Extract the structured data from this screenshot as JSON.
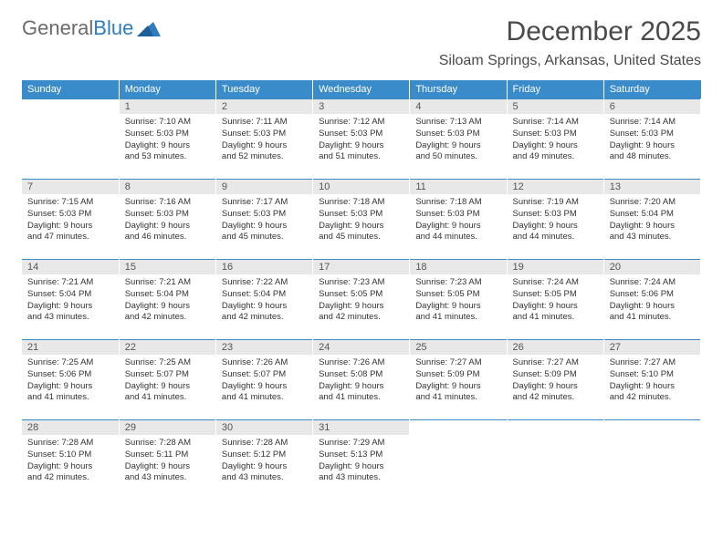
{
  "logo": {
    "text1": "General",
    "text2": "Blue"
  },
  "header": {
    "month_title": "December 2025",
    "location": "Siloam Springs, Arkansas, United States"
  },
  "colors": {
    "header_bg": "#3a8bc9",
    "header_text": "#ffffff",
    "daynum_bg": "#e8e8e8",
    "border": "#3a8bc9",
    "logo_gray": "#6b6b6b",
    "logo_blue": "#2f7bbf"
  },
  "typography": {
    "month_title_fontsize": 30,
    "location_fontsize": 16,
    "dayhead_fontsize": 11,
    "body_fontsize": 9.5
  },
  "day_headers": [
    "Sunday",
    "Monday",
    "Tuesday",
    "Wednesday",
    "Thursday",
    "Friday",
    "Saturday"
  ],
  "weeks": [
    [
      {
        "num": "",
        "lines": []
      },
      {
        "num": "1",
        "lines": [
          "Sunrise: 7:10 AM",
          "Sunset: 5:03 PM",
          "Daylight: 9 hours",
          "and 53 minutes."
        ]
      },
      {
        "num": "2",
        "lines": [
          "Sunrise: 7:11 AM",
          "Sunset: 5:03 PM",
          "Daylight: 9 hours",
          "and 52 minutes."
        ]
      },
      {
        "num": "3",
        "lines": [
          "Sunrise: 7:12 AM",
          "Sunset: 5:03 PM",
          "Daylight: 9 hours",
          "and 51 minutes."
        ]
      },
      {
        "num": "4",
        "lines": [
          "Sunrise: 7:13 AM",
          "Sunset: 5:03 PM",
          "Daylight: 9 hours",
          "and 50 minutes."
        ]
      },
      {
        "num": "5",
        "lines": [
          "Sunrise: 7:14 AM",
          "Sunset: 5:03 PM",
          "Daylight: 9 hours",
          "and 49 minutes."
        ]
      },
      {
        "num": "6",
        "lines": [
          "Sunrise: 7:14 AM",
          "Sunset: 5:03 PM",
          "Daylight: 9 hours",
          "and 48 minutes."
        ]
      }
    ],
    [
      {
        "num": "7",
        "lines": [
          "Sunrise: 7:15 AM",
          "Sunset: 5:03 PM",
          "Daylight: 9 hours",
          "and 47 minutes."
        ]
      },
      {
        "num": "8",
        "lines": [
          "Sunrise: 7:16 AM",
          "Sunset: 5:03 PM",
          "Daylight: 9 hours",
          "and 46 minutes."
        ]
      },
      {
        "num": "9",
        "lines": [
          "Sunrise: 7:17 AM",
          "Sunset: 5:03 PM",
          "Daylight: 9 hours",
          "and 45 minutes."
        ]
      },
      {
        "num": "10",
        "lines": [
          "Sunrise: 7:18 AM",
          "Sunset: 5:03 PM",
          "Daylight: 9 hours",
          "and 45 minutes."
        ]
      },
      {
        "num": "11",
        "lines": [
          "Sunrise: 7:18 AM",
          "Sunset: 5:03 PM",
          "Daylight: 9 hours",
          "and 44 minutes."
        ]
      },
      {
        "num": "12",
        "lines": [
          "Sunrise: 7:19 AM",
          "Sunset: 5:03 PM",
          "Daylight: 9 hours",
          "and 44 minutes."
        ]
      },
      {
        "num": "13",
        "lines": [
          "Sunrise: 7:20 AM",
          "Sunset: 5:04 PM",
          "Daylight: 9 hours",
          "and 43 minutes."
        ]
      }
    ],
    [
      {
        "num": "14",
        "lines": [
          "Sunrise: 7:21 AM",
          "Sunset: 5:04 PM",
          "Daylight: 9 hours",
          "and 43 minutes."
        ]
      },
      {
        "num": "15",
        "lines": [
          "Sunrise: 7:21 AM",
          "Sunset: 5:04 PM",
          "Daylight: 9 hours",
          "and 42 minutes."
        ]
      },
      {
        "num": "16",
        "lines": [
          "Sunrise: 7:22 AM",
          "Sunset: 5:04 PM",
          "Daylight: 9 hours",
          "and 42 minutes."
        ]
      },
      {
        "num": "17",
        "lines": [
          "Sunrise: 7:23 AM",
          "Sunset: 5:05 PM",
          "Daylight: 9 hours",
          "and 42 minutes."
        ]
      },
      {
        "num": "18",
        "lines": [
          "Sunrise: 7:23 AM",
          "Sunset: 5:05 PM",
          "Daylight: 9 hours",
          "and 41 minutes."
        ]
      },
      {
        "num": "19",
        "lines": [
          "Sunrise: 7:24 AM",
          "Sunset: 5:05 PM",
          "Daylight: 9 hours",
          "and 41 minutes."
        ]
      },
      {
        "num": "20",
        "lines": [
          "Sunrise: 7:24 AM",
          "Sunset: 5:06 PM",
          "Daylight: 9 hours",
          "and 41 minutes."
        ]
      }
    ],
    [
      {
        "num": "21",
        "lines": [
          "Sunrise: 7:25 AM",
          "Sunset: 5:06 PM",
          "Daylight: 9 hours",
          "and 41 minutes."
        ]
      },
      {
        "num": "22",
        "lines": [
          "Sunrise: 7:25 AM",
          "Sunset: 5:07 PM",
          "Daylight: 9 hours",
          "and 41 minutes."
        ]
      },
      {
        "num": "23",
        "lines": [
          "Sunrise: 7:26 AM",
          "Sunset: 5:07 PM",
          "Daylight: 9 hours",
          "and 41 minutes."
        ]
      },
      {
        "num": "24",
        "lines": [
          "Sunrise: 7:26 AM",
          "Sunset: 5:08 PM",
          "Daylight: 9 hours",
          "and 41 minutes."
        ]
      },
      {
        "num": "25",
        "lines": [
          "Sunrise: 7:27 AM",
          "Sunset: 5:09 PM",
          "Daylight: 9 hours",
          "and 41 minutes."
        ]
      },
      {
        "num": "26",
        "lines": [
          "Sunrise: 7:27 AM",
          "Sunset: 5:09 PM",
          "Daylight: 9 hours",
          "and 42 minutes."
        ]
      },
      {
        "num": "27",
        "lines": [
          "Sunrise: 7:27 AM",
          "Sunset: 5:10 PM",
          "Daylight: 9 hours",
          "and 42 minutes."
        ]
      }
    ],
    [
      {
        "num": "28",
        "lines": [
          "Sunrise: 7:28 AM",
          "Sunset: 5:10 PM",
          "Daylight: 9 hours",
          "and 42 minutes."
        ]
      },
      {
        "num": "29",
        "lines": [
          "Sunrise: 7:28 AM",
          "Sunset: 5:11 PM",
          "Daylight: 9 hours",
          "and 43 minutes."
        ]
      },
      {
        "num": "30",
        "lines": [
          "Sunrise: 7:28 AM",
          "Sunset: 5:12 PM",
          "Daylight: 9 hours",
          "and 43 minutes."
        ]
      },
      {
        "num": "31",
        "lines": [
          "Sunrise: 7:29 AM",
          "Sunset: 5:13 PM",
          "Daylight: 9 hours",
          "and 43 minutes."
        ]
      },
      {
        "num": "",
        "lines": []
      },
      {
        "num": "",
        "lines": []
      },
      {
        "num": "",
        "lines": []
      }
    ]
  ]
}
